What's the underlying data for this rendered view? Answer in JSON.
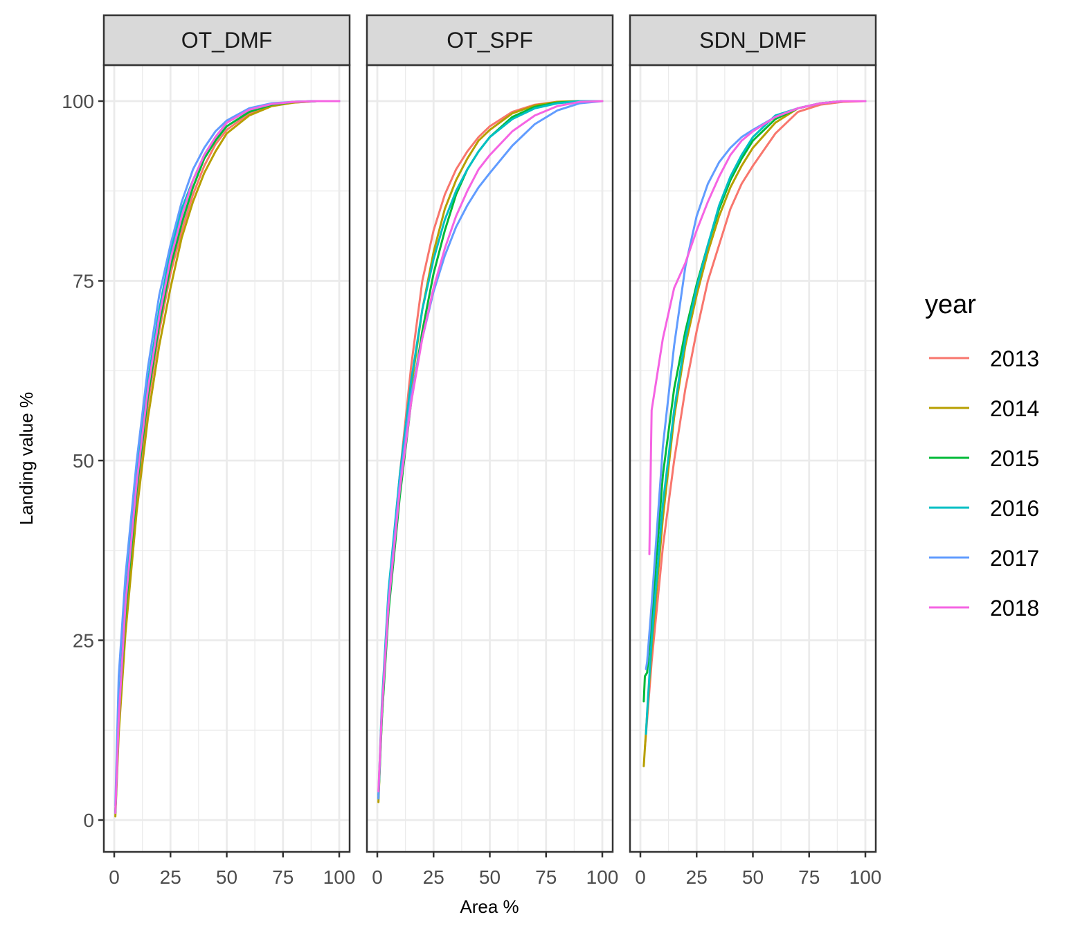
{
  "chart_data": {
    "type": "line",
    "xlabel": "Area %",
    "ylabel": "Landing value %",
    "xlim": [
      0,
      100
    ],
    "ylim": [
      0,
      100
    ],
    "x_ticks": [
      "0",
      "25",
      "50",
      "75",
      "100"
    ],
    "y_ticks": [
      "0",
      "25",
      "50",
      "75",
      "100"
    ],
    "grid": true,
    "legend": {
      "title": "year",
      "placement": "right",
      "entries": [
        {
          "label": "2013",
          "color": "#F8766D"
        },
        {
          "label": "2014",
          "color": "#B79F00"
        },
        {
          "label": "2015",
          "color": "#00BA38"
        },
        {
          "label": "2016",
          "color": "#00BFC4"
        },
        {
          "label": "2017",
          "color": "#619CFF"
        },
        {
          "label": "2018",
          "color": "#F564E3"
        }
      ]
    },
    "panels": [
      {
        "title": "OT_DMF",
        "series": [
          {
            "name": "2013",
            "x": [
              0.5,
              2,
              5,
              10,
              15,
              20,
              25,
              30,
              35,
              40,
              45,
              50,
              60,
              70,
              80,
              90,
              100
            ],
            "y": [
              1,
              13,
              28,
              45,
              58,
              68,
              76,
              82,
              87,
              91,
              94,
              96,
              98.3,
              99.4,
              99.8,
              100,
              100
            ]
          },
          {
            "name": "2014",
            "x": [
              0.5,
              2,
              5,
              10,
              15,
              20,
              25,
              30,
              35,
              40,
              45,
              50,
              60,
              70,
              80,
              90,
              100
            ],
            "y": [
              0.5,
              12,
              26,
              43,
              56,
              66,
              74,
              81,
              86,
              90,
              93,
              95.5,
              98,
              99.3,
              99.8,
              100,
              100
            ]
          },
          {
            "name": "2015",
            "x": [
              0.5,
              2,
              5,
              10,
              15,
              20,
              25,
              30,
              35,
              40,
              45,
              50,
              60,
              70,
              80,
              90,
              100
            ],
            "y": [
              1,
              14,
              29,
              46,
              59,
              69,
              77,
              83,
              88,
              92,
              94.5,
              96.5,
              98.5,
              99.5,
              99.9,
              100,
              100
            ]
          },
          {
            "name": "2016",
            "x": [
              0.5,
              2,
              5,
              10,
              15,
              20,
              25,
              30,
              35,
              40,
              45,
              50,
              60,
              70,
              80,
              90,
              100
            ],
            "y": [
              1,
              15,
              31,
              48,
              61,
              71,
              79,
              85,
              89,
              92.5,
              95,
              97,
              98.8,
              99.6,
              99.9,
              100,
              100
            ]
          },
          {
            "name": "2017",
            "x": [
              0.5,
              2,
              5,
              10,
              15,
              20,
              25,
              30,
              35,
              40,
              45,
              50,
              60,
              70,
              80,
              90,
              100
            ],
            "y": [
              2,
              20,
              34,
              50,
              63,
              73,
              80,
              86,
              90.5,
              93.5,
              95.8,
              97.3,
              99,
              99.7,
              99.9,
              100,
              100
            ]
          },
          {
            "name": "2018",
            "x": [
              0.5,
              2,
              5,
              10,
              15,
              20,
              25,
              30,
              35,
              40,
              45,
              50,
              60,
              70,
              80,
              90,
              100
            ],
            "y": [
              1,
              14,
              30,
              47,
              60,
              70,
              78,
              84,
              89,
              92.5,
              95,
              97,
              98.8,
              99.6,
              99.9,
              100,
              100
            ]
          }
        ]
      },
      {
        "title": "OT_SPF",
        "series": [
          {
            "name": "2013",
            "x": [
              0.5,
              2,
              5,
              10,
              15,
              20,
              25,
              30,
              35,
              40,
              45,
              50,
              60,
              70,
              80,
              90,
              100
            ],
            "y": [
              3,
              15,
              31,
              48,
              63,
              75,
              82,
              87,
              90.5,
              93,
              95,
              96.5,
              98.5,
              99.5,
              99.9,
              100,
              100
            ]
          },
          {
            "name": "2014",
            "x": [
              0.5,
              2,
              5,
              10,
              15,
              20,
              25,
              30,
              35,
              40,
              45,
              50,
              60,
              70,
              80,
              90,
              100
            ],
            "y": [
              2.5,
              14,
              30,
              47,
              60,
              71,
              79,
              85,
              89,
              92,
              94.5,
              96,
              98.3,
              99.4,
              99.9,
              100,
              100
            ]
          },
          {
            "name": "2015",
            "x": [
              0.5,
              2,
              5,
              10,
              15,
              20,
              25,
              30,
              35,
              40,
              45,
              50,
              60,
              70,
              80,
              90,
              100
            ],
            "y": [
              3,
              14,
              29,
              45,
              58,
              68,
              76,
              82,
              87,
              90.5,
              93,
              95,
              97.8,
              99.2,
              99.8,
              100,
              100
            ]
          },
          {
            "name": "2016",
            "x": [
              0.5,
              2,
              5,
              10,
              15,
              20,
              25,
              30,
              35,
              40,
              45,
              50,
              60,
              70,
              80,
              90,
              100
            ],
            "y": [
              3.5,
              16,
              32,
              48,
              61,
              71,
              78,
              83.5,
              87.5,
              90.5,
              93,
              95,
              97.5,
              99,
              99.7,
              100,
              100
            ]
          },
          {
            "name": "2017",
            "x": [
              0.5,
              2,
              5,
              10,
              15,
              20,
              25,
              30,
              35,
              40,
              45,
              50,
              60,
              70,
              80,
              90,
              100
            ],
            "y": [
              3,
              15,
              31,
              47,
              59,
              67,
              73.5,
              78.5,
              82.5,
              85.5,
              88,
              90,
              93.8,
              96.8,
              98.7,
              99.7,
              100
            ]
          },
          {
            "name": "2018",
            "x": [
              0.5,
              2,
              5,
              10,
              15,
              20,
              25,
              30,
              35,
              40,
              45,
              50,
              60,
              70,
              80,
              90,
              100
            ],
            "y": [
              4,
              15,
              30,
              46,
              58,
              67,
              74,
              79.5,
              84,
              87.5,
              90.5,
              92.5,
              95.8,
              98,
              99.3,
              99.9,
              100
            ]
          }
        ]
      },
      {
        "title": "SDN_DMF",
        "series": [
          {
            "name": "2013",
            "x": [
              2,
              5,
              10,
              15,
              20,
              25,
              30,
              35,
              40,
              45,
              50,
              60,
              70,
              80,
              90,
              100
            ],
            "y": [
              10,
              22,
              38,
              50,
              60,
              68,
              75,
              80,
              85,
              88.5,
              91,
              95.5,
              98.5,
              99.5,
              99.9,
              100
            ]
          },
          {
            "name": "2014",
            "x": [
              1.5,
              2,
              5,
              10,
              15,
              20,
              25,
              30,
              35,
              40,
              45,
              50,
              60,
              70,
              80,
              90,
              100
            ],
            "y": [
              7.5,
              10,
              24,
              42,
              56,
              66,
              73,
              79,
              84,
              88,
              91,
              93.5,
              97,
              99,
              99.7,
              100,
              100
            ]
          },
          {
            "name": "2015",
            "x": [
              1.5,
              2,
              3,
              5,
              10,
              15,
              20,
              25,
              30,
              35,
              40,
              45,
              50,
              60,
              70,
              80,
              90,
              100
            ],
            "y": [
              16.5,
              20,
              20.5,
              28,
              48,
              60,
              68,
              74.5,
              80,
              85,
              89,
              92,
              94.5,
              97.5,
              99,
              99.7,
              100,
              100
            ]
          },
          {
            "name": "2016",
            "x": [
              2.5,
              3,
              5,
              10,
              15,
              20,
              25,
              30,
              35,
              40,
              45,
              50,
              60,
              70,
              80,
              90,
              100
            ],
            "y": [
              12,
              15,
              25,
              44,
              57,
              67,
              74,
              80,
              85.5,
              89.5,
              92.5,
              95,
              98,
              99,
              99.7,
              100,
              100
            ]
          },
          {
            "name": "2017",
            "x": [
              2.5,
              3,
              5,
              10,
              15,
              20,
              25,
              30,
              35,
              40,
              45,
              50,
              60,
              70,
              80,
              90,
              100
            ],
            "y": [
              21,
              22,
              30,
              52,
              66,
              77,
              84,
              88.5,
              91.5,
              93.5,
              95,
              96,
              97.8,
              99,
              99.7,
              100,
              100
            ]
          },
          {
            "name": "2018",
            "x": [
              4,
              5,
              10,
              15,
              20,
              25,
              30,
              35,
              40,
              45,
              50,
              60,
              70,
              80,
              90,
              100
            ],
            "y": [
              37,
              57,
              67,
              74,
              77.5,
              82,
              86,
              89.5,
              92.5,
              94.5,
              95.8,
              97.8,
              99,
              99.7,
              100,
              100
            ]
          }
        ]
      }
    ]
  }
}
